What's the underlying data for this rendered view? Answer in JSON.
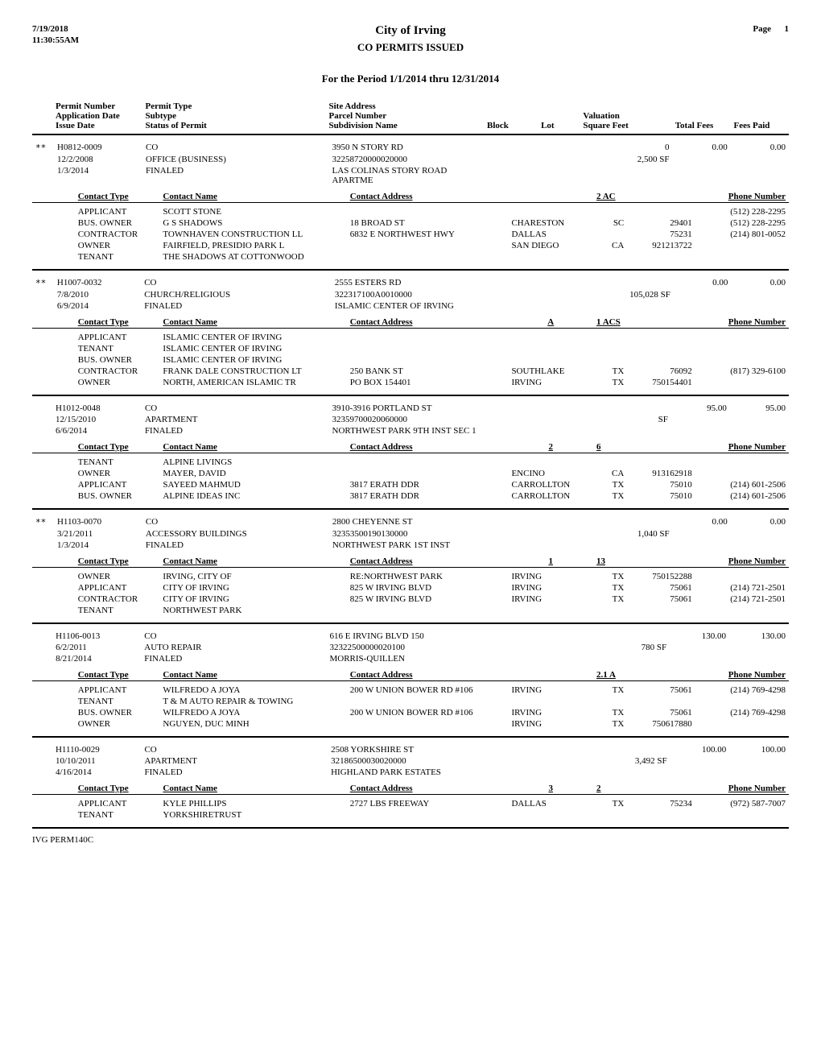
{
  "header": {
    "date": "7/19/2018",
    "time": "11:30:55AM",
    "page_label": "Page",
    "page_number": "1",
    "city": "City of Irving",
    "subtitle": "CO PERMITS ISSUED",
    "period": "For the Period 1/1/2014 thru 12/31/2014"
  },
  "columns": {
    "permit_number": "Permit Number",
    "application_date": "Application Date",
    "issue_date": "Issue Date",
    "permit_type": "Permit Type",
    "subtype": "Subtype",
    "status": "Status of Permit",
    "site_address": "Site Address",
    "parcel_number": "Parcel Number",
    "subdivision": "Subdivision Name",
    "block": "Block",
    "lot": "Lot",
    "valuation": "Valuation",
    "square_feet": "Square Feet",
    "total_fees": "Total Fees",
    "fees_paid": "Fees Paid",
    "contact_type": "Contact Type",
    "contact_name": "Contact Name",
    "contact_address": "Contact Address",
    "phone_number": "Phone Number"
  },
  "permits": [
    {
      "starred": true,
      "permit_number": "H0812-0009",
      "application_date": "12/2/2008",
      "issue_date": "1/3/2014",
      "permit_type": "CO",
      "subtype": "OFFICE (BUSINESS)",
      "status": "FINALED",
      "site_address": "3950 N STORY RD",
      "parcel_number": "32258720000020000",
      "subdivision": "LAS COLINAS STORY ROAD APARTME",
      "block": "",
      "lot": "2 AC",
      "valuation": "0",
      "square_feet": "2,500  SF",
      "total_fees": "0.00",
      "fees_paid": "0.00",
      "contacts": [
        {
          "type": "APPLICANT",
          "name": "SCOTT STONE",
          "address": "",
          "city": "",
          "state": "",
          "zip": "",
          "phone": "(512) 228-2295"
        },
        {
          "type": "BUS. OWNER",
          "name": "G S SHADOWS",
          "address": "18 BROAD ST",
          "city": "CHARESTON",
          "state": "SC",
          "zip": "29401",
          "phone": "(512) 228-2295"
        },
        {
          "type": "CONTRACTOR",
          "name": "TOWNHAVEN CONSTRUCTION LL",
          "address": "6832 E NORTHWEST HWY",
          "city": "DALLAS",
          "state": "",
          "zip": "75231",
          "phone": "(214) 801-0052"
        },
        {
          "type": "OWNER",
          "name": "FAIRFIELD, PRESIDIO PARK L",
          "address": "",
          "city": "SAN DIEGO",
          "state": "CA",
          "zip": "921213722",
          "phone": ""
        },
        {
          "type": "TENANT",
          "name": "THE SHADOWS AT COTTONWOOD",
          "address": "",
          "city": "",
          "state": "",
          "zip": "",
          "phone": ""
        }
      ]
    },
    {
      "starred": true,
      "permit_number": "H1007-0032",
      "application_date": "7/8/2010",
      "issue_date": "6/9/2014",
      "permit_type": "CO",
      "subtype": "CHURCH/RELIGIOUS",
      "status": "FINALED",
      "site_address": "2555 ESTERS RD",
      "parcel_number": "322317100A0010000",
      "subdivision": "ISLAMIC CENTER OF IRVING",
      "block": "A",
      "lot": "1 ACS",
      "valuation": "",
      "square_feet": "105,028  SF",
      "total_fees": "0.00",
      "fees_paid": "0.00",
      "contacts": [
        {
          "type": "APPLICANT",
          "name": "ISLAMIC CENTER OF IRVING",
          "address": "",
          "city": "",
          "state": "",
          "zip": "",
          "phone": ""
        },
        {
          "type": "TENANT",
          "name": "ISLAMIC CENTER OF IRVING",
          "address": "",
          "city": "",
          "state": "",
          "zip": "",
          "phone": ""
        },
        {
          "type": "BUS. OWNER",
          "name": "ISLAMIC CENTER OF IRVING",
          "address": "",
          "city": "",
          "state": "",
          "zip": "",
          "phone": ""
        },
        {
          "type": "CONTRACTOR",
          "name": "FRANK DALE CONSTRUCTION LT",
          "address": "250 BANK ST",
          "city": "SOUTHLAKE",
          "state": "TX",
          "zip": "76092",
          "phone": "(817) 329-6100"
        },
        {
          "type": "OWNER",
          "name": "NORTH, AMERICAN ISLAMIC TR",
          "address": "PO BOX 154401",
          "city": "IRVING",
          "state": "TX",
          "zip": "750154401",
          "phone": ""
        }
      ]
    },
    {
      "starred": false,
      "permit_number": "H1012-0048",
      "application_date": "12/15/2010",
      "issue_date": "6/6/2014",
      "permit_type": "CO",
      "subtype": "APARTMENT",
      "status": "FINALED",
      "site_address": "3910-3916 PORTLAND ST",
      "parcel_number": "32359700020060000",
      "subdivision": "NORTHWEST PARK 9TH INST SEC 1",
      "block": "2",
      "lot": "6",
      "valuation": "",
      "square_feet": "SF",
      "total_fees": "95.00",
      "fees_paid": "95.00",
      "contacts": [
        {
          "type": "TENANT",
          "name": "ALPINE LIVINGS",
          "address": "",
          "city": "",
          "state": "",
          "zip": "",
          "phone": ""
        },
        {
          "type": "OWNER",
          "name": "MAYER, DAVID",
          "address": "",
          "city": "ENCINO",
          "state": "CA",
          "zip": "913162918",
          "phone": ""
        },
        {
          "type": "APPLICANT",
          "name": "SAYEED MAHMUD",
          "address": "3817 ERATH DDR",
          "city": "CARROLLTON",
          "state": "TX",
          "zip": "75010",
          "phone": "(214) 601-2506"
        },
        {
          "type": "BUS. OWNER",
          "name": "ALPINE IDEAS INC",
          "address": "3817 ERATH DDR",
          "city": "CARROLLTON",
          "state": "TX",
          "zip": "75010",
          "phone": "(214) 601-2506"
        }
      ]
    },
    {
      "starred": true,
      "permit_number": "H1103-0070",
      "application_date": "3/21/2011",
      "issue_date": "1/3/2014",
      "permit_type": "CO",
      "subtype": "ACCESSORY BUILDINGS",
      "status": "FINALED",
      "site_address": "2800 CHEYENNE ST",
      "parcel_number": "32353500190130000",
      "subdivision": "NORTHWEST PARK 1ST INST",
      "block": "1",
      "lot": "13",
      "valuation": "",
      "square_feet": "1,040  SF",
      "total_fees": "0.00",
      "fees_paid": "0.00",
      "contacts": [
        {
          "type": "OWNER",
          "name": "IRVING, CITY OF",
          "address": "RE:NORTHWEST PARK",
          "city": "IRVING",
          "state": "TX",
          "zip": "750152288",
          "phone": ""
        },
        {
          "type": "APPLICANT",
          "name": "CITY OF IRVING",
          "address": "825 W IRVING BLVD",
          "city": "IRVING",
          "state": "TX",
          "zip": "75061",
          "phone": "(214) 721-2501"
        },
        {
          "type": "CONTRACTOR",
          "name": "CITY OF IRVING",
          "address": "825 W IRVING BLVD",
          "city": "IRVING",
          "state": "TX",
          "zip": "75061",
          "phone": "(214) 721-2501"
        },
        {
          "type": "TENANT",
          "name": "NORTHWEST PARK",
          "address": "",
          "city": "",
          "state": "",
          "zip": "",
          "phone": ""
        }
      ]
    },
    {
      "starred": false,
      "permit_number": "H1106-0013",
      "application_date": "6/2/2011",
      "issue_date": "8/21/2014",
      "permit_type": "CO",
      "subtype": "AUTO REPAIR",
      "status": "FINALED",
      "site_address": "616 E IRVING BLVD 150",
      "parcel_number": "32322500000020100",
      "subdivision": "MORRIS-QUILLEN",
      "block": "",
      "lot": "2.1 A",
      "valuation": "",
      "square_feet": "780  SF",
      "total_fees": "130.00",
      "fees_paid": "130.00",
      "contacts": [
        {
          "type": "APPLICANT",
          "name": "WILFREDO A JOYA",
          "address": "200 W UNION BOWER RD #106",
          "city": "IRVING",
          "state": "TX",
          "zip": "75061",
          "phone": "(214) 769-4298"
        },
        {
          "type": "TENANT",
          "name": "T & M AUTO REPAIR & TOWING",
          "address": "",
          "city": "",
          "state": "",
          "zip": "",
          "phone": ""
        },
        {
          "type": "BUS. OWNER",
          "name": "WILFREDO A JOYA",
          "address": "200 W UNION BOWER RD #106",
          "city": "IRVING",
          "state": "TX",
          "zip": "75061",
          "phone": "(214) 769-4298"
        },
        {
          "type": "OWNER",
          "name": "NGUYEN, DUC MINH",
          "address": "",
          "city": "IRVING",
          "state": "TX",
          "zip": "750617880",
          "phone": ""
        }
      ]
    },
    {
      "starred": false,
      "permit_number": "H1110-0029",
      "application_date": "10/10/2011",
      "issue_date": "4/16/2014",
      "permit_type": "CO",
      "subtype": "APARTMENT",
      "status": "FINALED",
      "site_address": "2508 YORKSHIRE ST",
      "parcel_number": "32186500030020000",
      "subdivision": "HIGHLAND PARK ESTATES",
      "block": "3",
      "lot": "2",
      "valuation": "",
      "square_feet": "3,492  SF",
      "total_fees": "100.00",
      "fees_paid": "100.00",
      "contacts": [
        {
          "type": "APPLICANT",
          "name": "KYLE PHILLIPS",
          "address": "2727 LBS FREEWAY",
          "city": "DALLAS",
          "state": "TX",
          "zip": "75234",
          "phone": "(972) 587-7007"
        },
        {
          "type": "TENANT",
          "name": "YORKSHIRETRUST",
          "address": "",
          "city": "",
          "state": "",
          "zip": "",
          "phone": ""
        }
      ]
    }
  ],
  "footer": "IVG PERM140C"
}
